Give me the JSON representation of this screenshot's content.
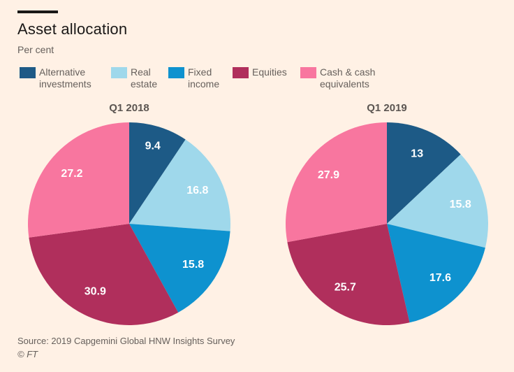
{
  "page": {
    "background": "#fff1e5"
  },
  "header": {
    "title": "Asset allocation",
    "subtitle": "Per cent"
  },
  "legend": {
    "items": [
      {
        "label": "Alternative investments",
        "color": "#1d5a86"
      },
      {
        "label": "Real estate",
        "color": "#9fd8eb"
      },
      {
        "label": "Fixed income",
        "color": "#0e92cf"
      },
      {
        "label": "Equities",
        "color": "#b02f5c"
      },
      {
        "label": "Cash & cash equivalents",
        "color": "#f8769f"
      }
    ]
  },
  "chart_data": [
    {
      "type": "pie",
      "title": "Q1 2018",
      "units": "Per cent",
      "start_angle_deg": 0,
      "direction": "clockwise",
      "labels": [
        "Alternative investments",
        "Real estate",
        "Fixed income",
        "Equities",
        "Cash & cash equivalents"
      ],
      "values": [
        9.4,
        16.8,
        15.8,
        30.9,
        27.2
      ],
      "display_values": [
        "9.4",
        "16.8",
        "15.8",
        "30.9",
        "27.2"
      ],
      "colors": [
        "#1d5a86",
        "#9fd8eb",
        "#0e92cf",
        "#b02f5c",
        "#f8769f"
      ],
      "value_label_color": "#ffffff"
    },
    {
      "type": "pie",
      "title": "Q1 2019",
      "units": "Per cent",
      "start_angle_deg": 0,
      "direction": "clockwise",
      "labels": [
        "Alternative investments",
        "Real estate",
        "Fixed income",
        "Equities",
        "Cash & cash equivalents"
      ],
      "values": [
        13,
        15.8,
        17.6,
        25.7,
        27.9
      ],
      "display_values": [
        "13",
        "15.8",
        "17.6",
        "25.7",
        "27.9"
      ],
      "colors": [
        "#1d5a86",
        "#9fd8eb",
        "#0e92cf",
        "#b02f5c",
        "#f8769f"
      ],
      "value_label_color": "#ffffff"
    }
  ],
  "footer": {
    "source": "Source: 2019 Capgemini Global HNW Insights Survey",
    "copyright": "© FT"
  }
}
